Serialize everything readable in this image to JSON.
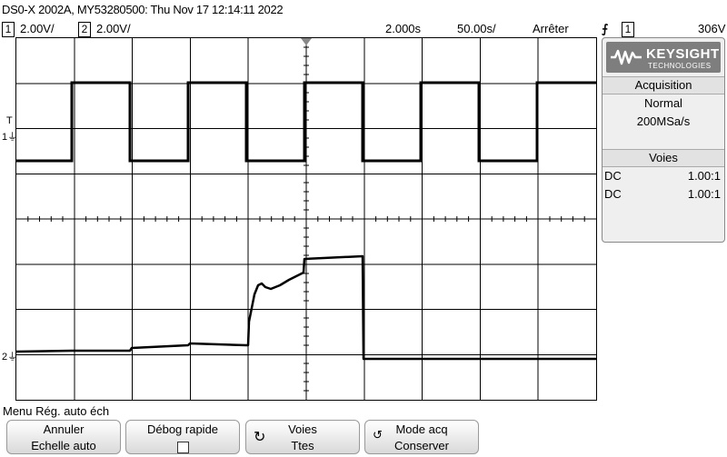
{
  "header": {
    "title": "DS0-X 2002A, MY53280500: Thu Nov 17 12:14:11 2022"
  },
  "status": {
    "ch1_num": "1",
    "ch1_scale": "2.00V/",
    "ch2_num": "2",
    "ch2_scale": "2.00V/",
    "time_delay": "2.000s",
    "time_scale": "50.00s/",
    "run_state": "Arrêter",
    "trigger_icon": "rising-edge-trigger-icon",
    "trigger_channel": "1",
    "trigger_level": "306V"
  },
  "markers": {
    "trigger_level": "T",
    "ch1_ground": "1",
    "ch2_ground": "2"
  },
  "panel": {
    "logo_brand": "KEYSIGHT",
    "logo_sub": "TECHNOLOGIES",
    "acquisition_header": "Acquisition",
    "acq_mode": "Normal",
    "sample_rate": "200MSa/s",
    "channels_header": "Voies",
    "channels": [
      {
        "coupling": "DC",
        "probe": "1.00:1"
      },
      {
        "coupling": "DC",
        "probe": "1.00:1"
      }
    ]
  },
  "menu": {
    "title": "Menu Rég. auto éch",
    "softkeys": [
      {
        "line1": "Annuler",
        "line2": "Echelle auto"
      },
      {
        "line1": "Débog rapide",
        "line2": ""
      },
      {
        "line1": "Voies",
        "line2": "Ttes"
      },
      {
        "line1": "Mode acq",
        "line2": "Conserver"
      }
    ]
  },
  "colors": {
    "background": "#ffffff",
    "trace": "#000000",
    "panel": "#efefef",
    "logo": "#7e7e7e"
  }
}
